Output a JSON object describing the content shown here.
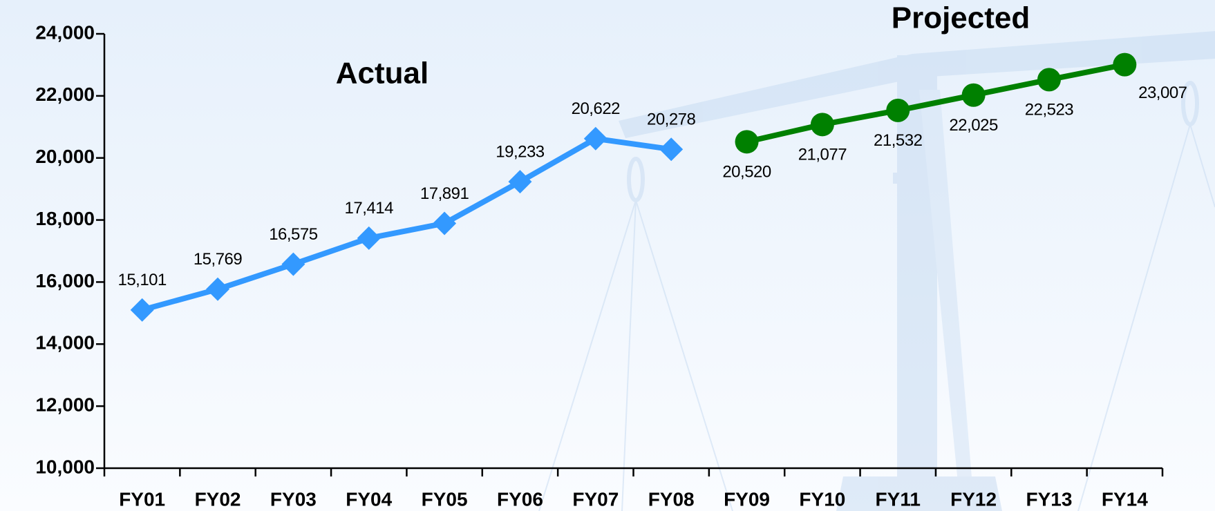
{
  "chart_data": {
    "type": "line",
    "categories": [
      "FY01",
      "FY02",
      "FY03",
      "FY04",
      "FY05",
      "FY06",
      "FY07",
      "FY08",
      "FY09",
      "FY10",
      "FY11",
      "FY12",
      "FY13",
      "FY14"
    ],
    "series": [
      {
        "name": "Actual",
        "color": "#3399ff",
        "marker": "diamond",
        "label_side": "above",
        "values": [
          15101,
          15769,
          16575,
          17414,
          17891,
          19233,
          20622,
          20278,
          null,
          null,
          null,
          null,
          null,
          null
        ],
        "value_labels": [
          "15,101",
          "15,769",
          "16,575",
          "17,414",
          "17,891",
          "19,233",
          "20,622",
          "20,278",
          null,
          null,
          null,
          null,
          null,
          null
        ]
      },
      {
        "name": "Projected",
        "color": "#008000",
        "marker": "circle",
        "label_side": "below",
        "values": [
          null,
          null,
          null,
          null,
          null,
          null,
          null,
          null,
          20520,
          21077,
          21532,
          22025,
          22523,
          23007
        ],
        "value_labels": [
          null,
          null,
          null,
          null,
          null,
          null,
          null,
          null,
          "20,520",
          "21,077",
          "21,532",
          "22,025",
          "22,523",
          "23,007"
        ]
      }
    ],
    "ylim": [
      10000,
      24000
    ],
    "yticks": [
      {
        "value": 10000,
        "label": "10,000"
      },
      {
        "value": 12000,
        "label": "12,000"
      },
      {
        "value": 14000,
        "label": "14,000"
      },
      {
        "value": 16000,
        "label": "16,000"
      },
      {
        "value": 18000,
        "label": "18,000"
      },
      {
        "value": 20000,
        "label": "20,000"
      },
      {
        "value": 22000,
        "label": "22,000"
      },
      {
        "value": 24000,
        "label": "24,000"
      }
    ]
  }
}
